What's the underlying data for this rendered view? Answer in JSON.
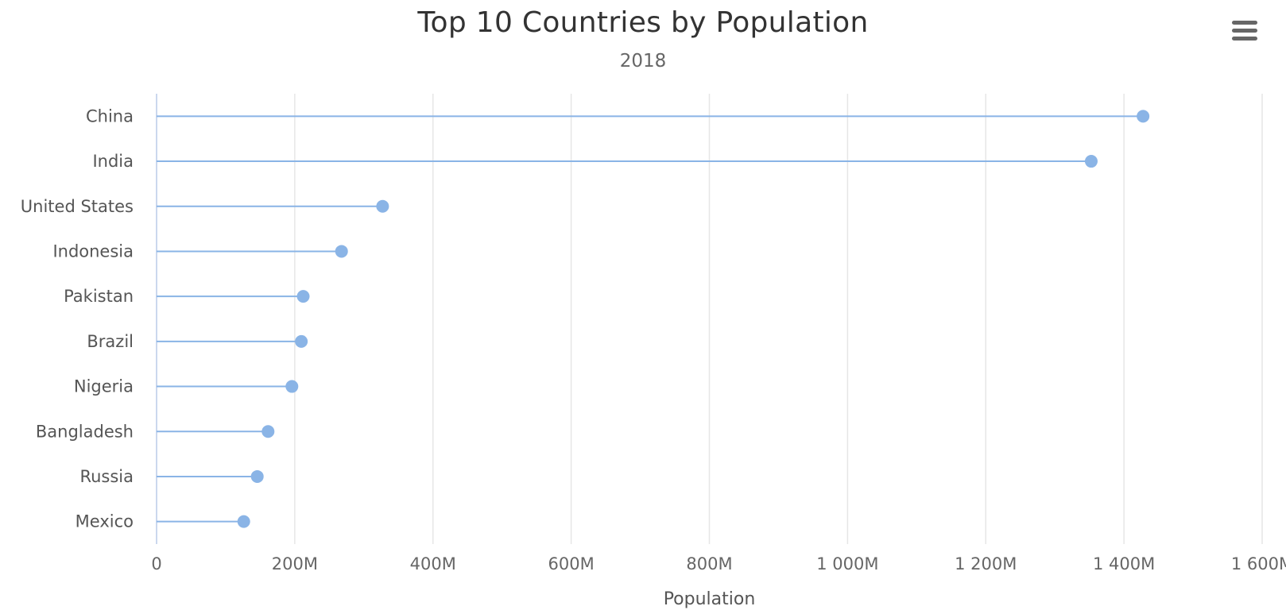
{
  "chart_data": {
    "type": "lollipop",
    "title": "Top 10 Countries by Population",
    "subtitle": "2018",
    "xlabel": "Population",
    "ylabel": "",
    "orientation": "horizontal",
    "categories": [
      "China",
      "India",
      "United States",
      "Indonesia",
      "Pakistan",
      "Brazil",
      "Nigeria",
      "Bangladesh",
      "Russia",
      "Mexico"
    ],
    "values": [
      1427647786,
      1352642280,
      327096265,
      267670543,
      212228286,
      209469323,
      195874683,
      161376708,
      145734038,
      126190788
    ],
    "xlim": [
      0,
      1600000000
    ],
    "x_tick_values": [
      0,
      200000000,
      400000000,
      600000000,
      800000000,
      1000000000,
      1200000000,
      1400000000,
      1600000000
    ],
    "x_tick_labels": [
      "0",
      "200M",
      "400M",
      "600M",
      "800M",
      "1 000M",
      "1 200M",
      "1 400M",
      "1 600M"
    ],
    "grid": true,
    "legend": false,
    "colors": {
      "series": "#8ab4e6",
      "stem": "#8ab4e6",
      "grid": "#e6e6e6",
      "axis": "#cbd8ee"
    }
  },
  "menu": {
    "icon": "hamburger-menu-icon"
  }
}
